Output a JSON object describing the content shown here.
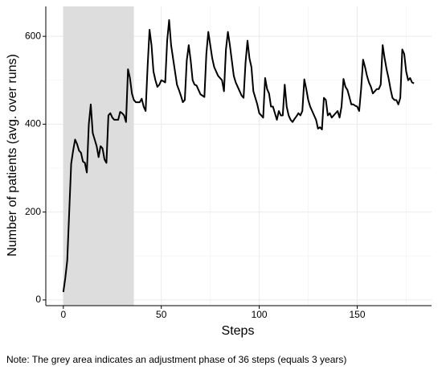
{
  "chart_data": {
    "type": "line",
    "x_label": "Steps",
    "y_label": "Number of patients (avg. over runs)",
    "note": "Note: The grey area indicates an adjustment phase of 36 steps (equals 3 years)",
    "shaded_region": [
      0,
      36
    ],
    "shaded_color": "#dddddd",
    "x": [
      0,
      1,
      2,
      3,
      4,
      5,
      6,
      7,
      8,
      9,
      10,
      11,
      12,
      13,
      14,
      15,
      16,
      17,
      18,
      19,
      20,
      21,
      22,
      23,
      24,
      25,
      26,
      27,
      28,
      29,
      30,
      31,
      32,
      33,
      34,
      35,
      36,
      37,
      38,
      39,
      40,
      41,
      42,
      43,
      44,
      45,
      46,
      47,
      48,
      49,
      50,
      51,
      52,
      53,
      54,
      55,
      56,
      57,
      58,
      59,
      60,
      61,
      62,
      63,
      64,
      65,
      66,
      67,
      68,
      69,
      70,
      71,
      72,
      73,
      74,
      75,
      76,
      77,
      78,
      79,
      80,
      81,
      82,
      83,
      84,
      85,
      86,
      87,
      88,
      89,
      90,
      91,
      92,
      93,
      94,
      95,
      96,
      97,
      98,
      99,
      100,
      101,
      102,
      103,
      104,
      105,
      106,
      107,
      108,
      109,
      110,
      111,
      112,
      113,
      114,
      115,
      116,
      117,
      118,
      119,
      120,
      121,
      122,
      123,
      124,
      125,
      126,
      127,
      128,
      129,
      130,
      131,
      132,
      133,
      134,
      135,
      136,
      137,
      138,
      139,
      140,
      141,
      142,
      143,
      144,
      145,
      146,
      147,
      148,
      149,
      150,
      151,
      152,
      153,
      154,
      155,
      156,
      157,
      158,
      159,
      160,
      161,
      162,
      163,
      164,
      165,
      166,
      167,
      168,
      169,
      170,
      171,
      172,
      173,
      174,
      175,
      176,
      177,
      178,
      179
    ],
    "series": [
      {
        "name": "Patients",
        "color": "#000000",
        "values": [
          18,
          50,
          90,
          200,
          310,
          340,
          365,
          355,
          340,
          335,
          315,
          312,
          290,
          400,
          445,
          380,
          365,
          350,
          325,
          350,
          345,
          320,
          312,
          420,
          425,
          415,
          410,
          410,
          410,
          428,
          425,
          420,
          405,
          525,
          505,
          470,
          455,
          450,
          450,
          450,
          458,
          440,
          430,
          530,
          615,
          580,
          520,
          500,
          485,
          490,
          500,
          498,
          495,
          590,
          637,
          580,
          550,
          520,
          490,
          478,
          465,
          450,
          455,
          545,
          580,
          545,
          500,
          490,
          488,
          478,
          468,
          465,
          462,
          560,
          610,
          580,
          550,
          530,
          520,
          510,
          505,
          500,
          475,
          570,
          610,
          580,
          545,
          510,
          495,
          485,
          475,
          465,
          460,
          540,
          590,
          550,
          530,
          475,
          460,
          445,
          425,
          420,
          415,
          505,
          480,
          470,
          440,
          440,
          425,
          410,
          430,
          420,
          420,
          490,
          440,
          420,
          410,
          405,
          412,
          418,
          425,
          420,
          430,
          502,
          480,
          455,
          440,
          430,
          420,
          410,
          390,
          393,
          388,
          460,
          455,
          420,
          425,
          415,
          420,
          425,
          430,
          415,
          440,
          503,
          485,
          478,
          462,
          445,
          445,
          442,
          440,
          430,
          480,
          547,
          530,
          510,
          495,
          485,
          470,
          475,
          480,
          480,
          490,
          580,
          550,
          525,
          505,
          480,
          460,
          455,
          455,
          445,
          460,
          570,
          560,
          520,
          500,
          505,
          495,
          493
        ]
      }
    ],
    "xlim": [
      -8.95,
      187.95
    ],
    "ylim": [
      -13,
      668
    ],
    "xticks": [
      0,
      50,
      100,
      150
    ],
    "yticks": [
      0,
      200,
      400,
      600
    ],
    "xminorticks": [
      25,
      75,
      125,
      175
    ],
    "yminorticks": [
      100,
      300,
      500
    ],
    "grid": true
  }
}
